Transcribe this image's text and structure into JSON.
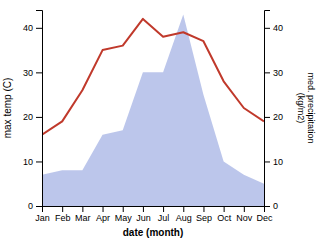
{
  "chart_data": {
    "type": "line",
    "categories": [
      "Jan",
      "Feb",
      "Mar",
      "Apr",
      "May",
      "Jun",
      "Jul",
      "Aug",
      "Sep",
      "Oct",
      "Nov",
      "Dec"
    ],
    "xlabel": "date (month)",
    "ylabel": "max temp (C)",
    "y2label": "med. precipitation\n(kg/m2)",
    "ylim": [
      0,
      44
    ],
    "yticks": [
      0,
      10,
      20,
      30,
      40
    ],
    "y2lim": [
      0,
      44
    ],
    "y2ticks": [
      0,
      10,
      20,
      30,
      40
    ],
    "series": [
      {
        "type": "line",
        "color": "#c0392b",
        "values": [
          16,
          19,
          26,
          35,
          36,
          42,
          38,
          39,
          37,
          28,
          22,
          19
        ]
      },
      {
        "type": "area",
        "axis": "y2",
        "color": "#b0bce8",
        "values": [
          7,
          8,
          8,
          16,
          17,
          30,
          30,
          43,
          25,
          10,
          7,
          5
        ]
      }
    ]
  }
}
